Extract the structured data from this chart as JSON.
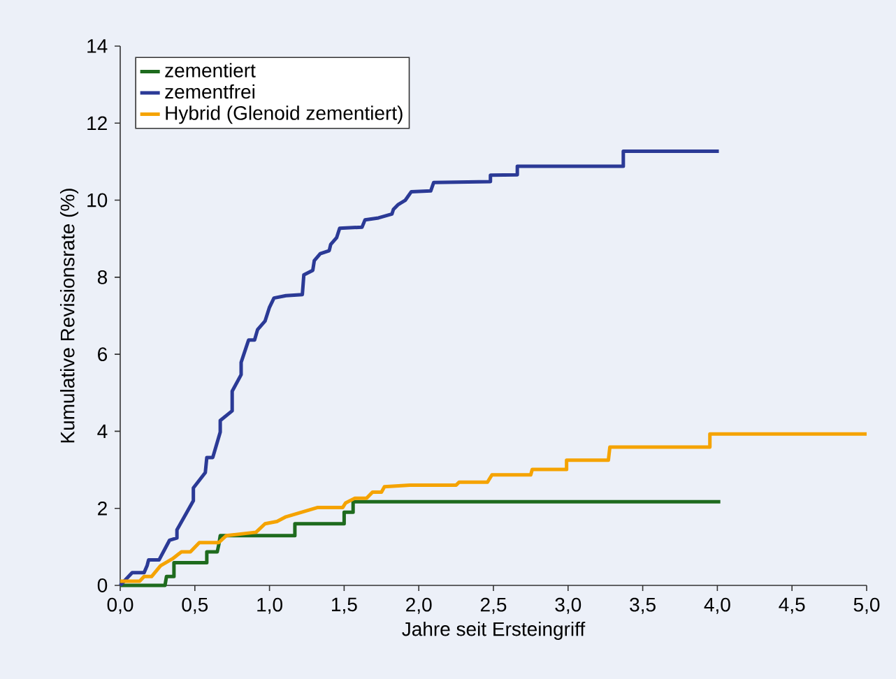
{
  "chart_data": {
    "type": "line",
    "xlabel": "Jahre seit Ersteingriff",
    "ylabel": "Kumulative Revisionsrate (%)",
    "xlim": [
      0,
      5
    ],
    "ylim": [
      0,
      14
    ],
    "xticks": [
      {
        "value": 0,
        "label": "0,0"
      },
      {
        "value": 0.5,
        "label": "0,5"
      },
      {
        "value": 1,
        "label": "1,0"
      },
      {
        "value": 1.5,
        "label": "1,5"
      },
      {
        "value": 2,
        "label": "2,0"
      },
      {
        "value": 2.5,
        "label": "2,5"
      },
      {
        "value": 3,
        "label": "3,0"
      },
      {
        "value": 3.5,
        "label": "3,5"
      },
      {
        "value": 4,
        "label": "4,0"
      },
      {
        "value": 4.5,
        "label": "4,5"
      },
      {
        "value": 5,
        "label": "5,0"
      }
    ],
    "yticks": [
      0,
      2,
      4,
      6,
      8,
      10,
      12,
      14
    ],
    "legend": "top left",
    "marker": "none",
    "line_style": "solid",
    "series": [
      {
        "name": "zementiert",
        "color": "#1e6b1e",
        "x": [
          0,
          0.3,
          0.31,
          0.36,
          0.36,
          0.58,
          0.58,
          0.65,
          0.66,
          0.67,
          1.17,
          1.17,
          1.5,
          1.5,
          1.56,
          1.56,
          4.02
        ],
        "values": [
          0,
          0,
          0.23,
          0.23,
          0.59,
          0.59,
          0.87,
          0.87,
          1.05,
          1.29,
          1.29,
          1.6,
          1.6,
          1.9,
          1.9,
          2.17,
          2.17
        ]
      },
      {
        "name": "zementfrei",
        "color": "#2b3a96",
        "x": [
          0,
          0.08,
          0.16,
          0.18,
          0.19,
          0.26,
          0.33,
          0.38,
          0.38,
          0.49,
          0.49,
          0.57,
          0.58,
          0.62,
          0.67,
          0.67,
          0.75,
          0.75,
          0.81,
          0.81,
          0.86,
          0.9,
          0.92,
          0.97,
          1.0,
          1.03,
          1.11,
          1.22,
          1.23,
          1.29,
          1.3,
          1.34,
          1.4,
          1.41,
          1.45,
          1.47,
          1.62,
          1.64,
          1.73,
          1.82,
          1.83,
          1.86,
          1.91,
          1.95,
          2.08,
          2.1,
          2.48,
          2.48,
          2.66,
          2.66,
          3.37,
          3.37,
          4.01
        ],
        "values": [
          0,
          0.33,
          0.33,
          0.51,
          0.66,
          0.66,
          1.17,
          1.23,
          1.44,
          2.2,
          2.53,
          2.93,
          3.32,
          3.32,
          3.98,
          4.28,
          4.53,
          5.04,
          5.47,
          5.79,
          6.37,
          6.37,
          6.64,
          6.86,
          7.22,
          7.46,
          7.52,
          7.55,
          8.06,
          8.18,
          8.43,
          8.61,
          8.69,
          8.85,
          9.03,
          9.27,
          9.3,
          9.49,
          9.54,
          9.64,
          9.76,
          9.88,
          10.0,
          10.22,
          10.24,
          10.46,
          10.48,
          10.65,
          10.66,
          10.88,
          10.88,
          11.27,
          11.27
        ]
      },
      {
        "name": "Hybrid (Glenoid zementiert)",
        "color": "#f5a300",
        "x": [
          0,
          0.13,
          0.16,
          0.21,
          0.27,
          0.35,
          0.41,
          0.47,
          0.53,
          0.66,
          0.71,
          0.91,
          0.97,
          1.05,
          1.11,
          1.32,
          1.49,
          1.51,
          1.57,
          1.65,
          1.69,
          1.75,
          1.77,
          1.94,
          2.25,
          2.27,
          2.46,
          2.49,
          2.75,
          2.76,
          2.99,
          2.99,
          3.27,
          3.28,
          3.95,
          3.95,
          5.0
        ],
        "values": [
          0.11,
          0.11,
          0.23,
          0.23,
          0.51,
          0.69,
          0.87,
          0.87,
          1.11,
          1.11,
          1.29,
          1.38,
          1.6,
          1.66,
          1.78,
          2.02,
          2.02,
          2.14,
          2.26,
          2.26,
          2.42,
          2.42,
          2.56,
          2.6,
          2.6,
          2.68,
          2.68,
          2.87,
          2.87,
          3.01,
          3.01,
          3.25,
          3.25,
          3.59,
          3.59,
          3.93,
          3.93
        ]
      }
    ]
  }
}
